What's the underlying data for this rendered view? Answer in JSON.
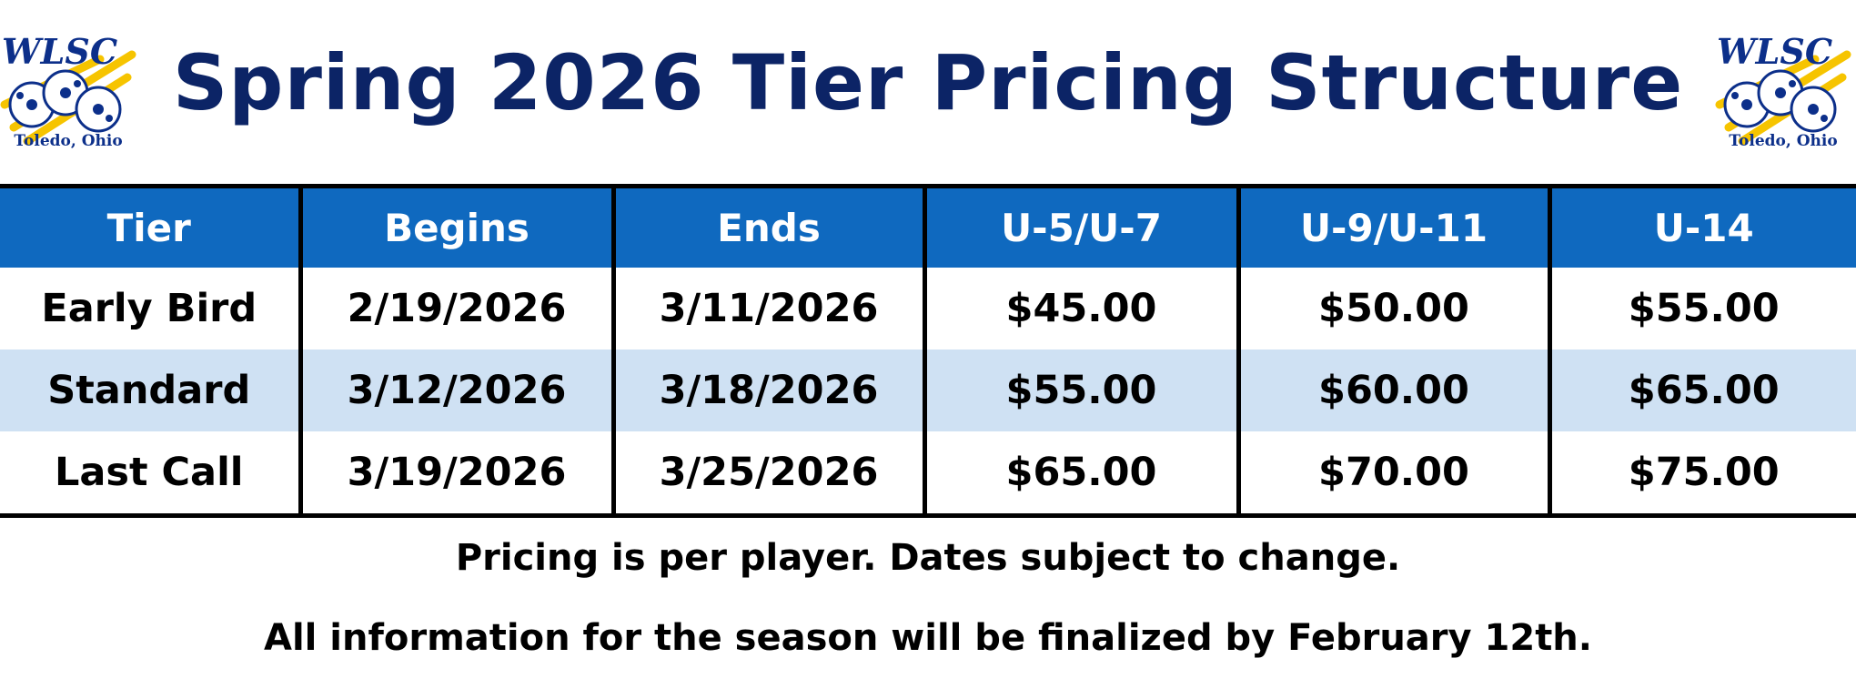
{
  "header": {
    "title": "Spring 2026 Tier Pricing Structure",
    "logo": {
      "text": "WLSC",
      "subtext": "Toledo, Ohio"
    }
  },
  "colors": {
    "title": "#0c2466",
    "header_bg": "#0f69bf",
    "alt_row": "#cfe1f3",
    "logo_yellow": "#f6c400",
    "logo_blue": "#0c2f8a"
  },
  "table": {
    "columns": [
      "Tier",
      "Begins",
      "Ends",
      "U-5/U-7",
      "U-9/U-11",
      "U-14"
    ],
    "rows": [
      [
        "Early Bird",
        "2/19/2026",
        "3/11/2026",
        "$45.00",
        "$50.00",
        "$55.00"
      ],
      [
        "Standard",
        "3/12/2026",
        "3/18/2026",
        "$55.00",
        "$60.00",
        "$65.00"
      ],
      [
        "Last Call",
        "3/19/2026",
        "3/25/2026",
        "$65.00",
        "$70.00",
        "$75.00"
      ]
    ]
  },
  "footer": {
    "line1": "Pricing is per player. Dates subject to change.",
    "line2": "All information for the season will be finalized by February 12th."
  }
}
